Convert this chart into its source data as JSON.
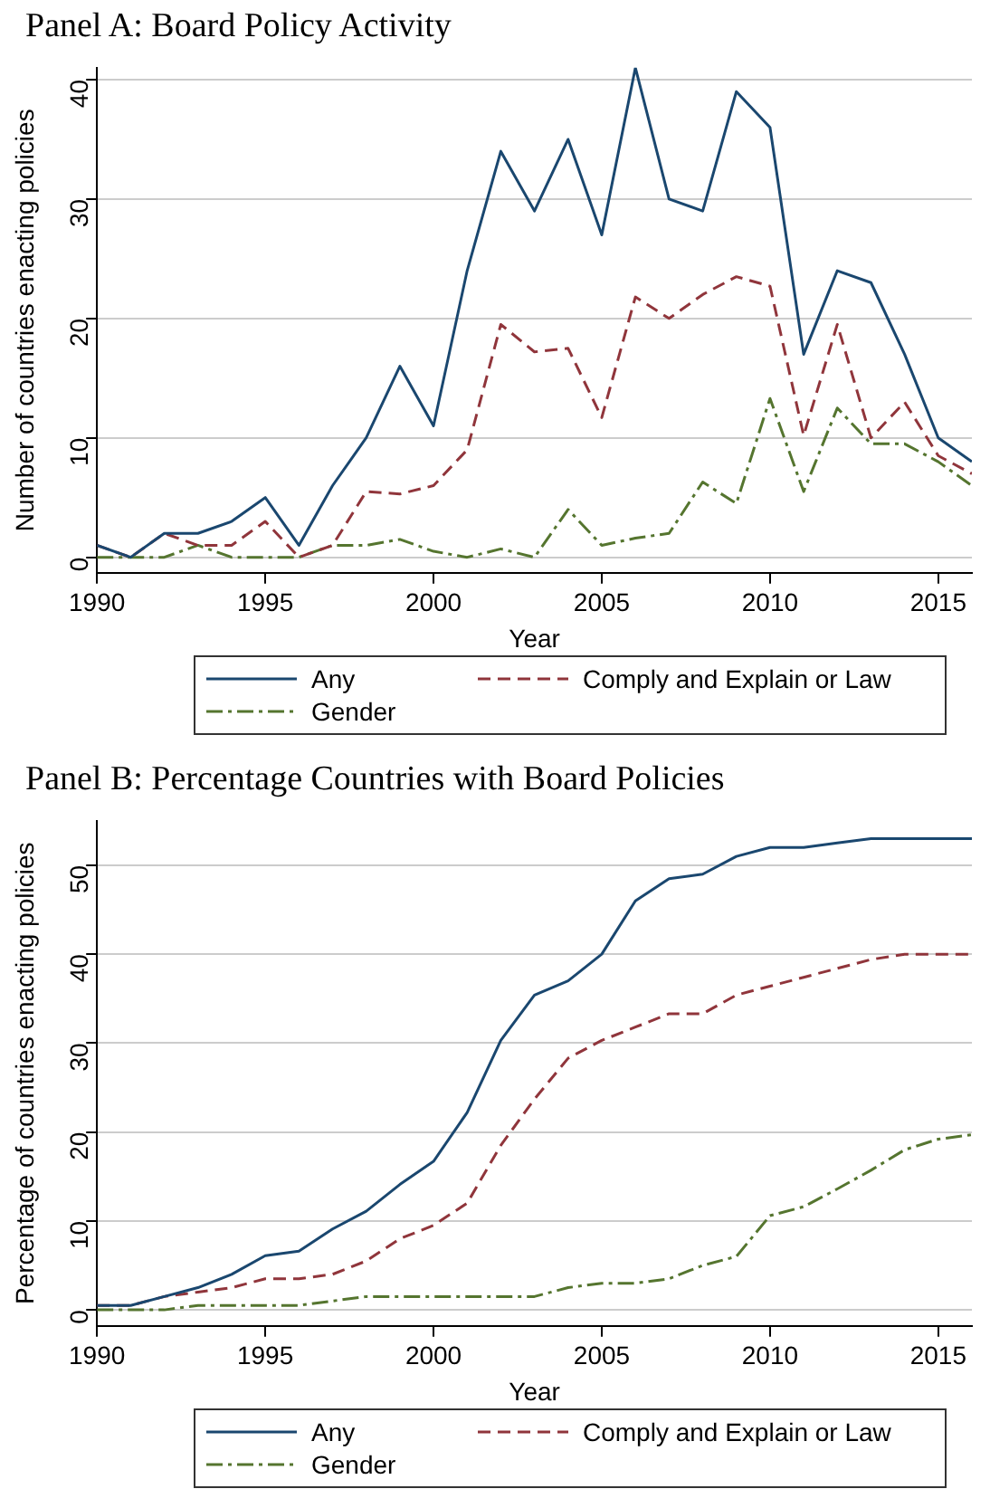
{
  "chart_data": [
    {
      "type": "line",
      "title": "Panel A: Board Policy Activity",
      "xlabel": "Year",
      "ylabel": "Number of countries enacting policies",
      "x": [
        1990,
        1991,
        1992,
        1993,
        1994,
        1995,
        1996,
        1997,
        1998,
        1999,
        2000,
        2001,
        2002,
        2003,
        2004,
        2005,
        2006,
        2007,
        2008,
        2009,
        2010,
        2011,
        2012,
        2013,
        2014,
        2015,
        2016
      ],
      "series": [
        {
          "name": "Any",
          "color": "#1a476f",
          "line_style": "solid",
          "values": [
            1,
            0,
            2,
            2,
            3,
            5,
            1,
            6,
            10,
            16,
            11,
            24,
            34,
            29,
            35,
            27,
            41,
            30,
            29,
            39,
            36,
            17,
            24,
            23,
            17,
            10,
            8
          ]
        },
        {
          "name": "Comply and Explain or Law",
          "color": "#90353b",
          "line_style": "dashed",
          "values": [
            1,
            0,
            2,
            1,
            1,
            3,
            0,
            1,
            5.5,
            5.3,
            6,
            9,
            19.5,
            17.2,
            17.5,
            11.7,
            21.8,
            20,
            22,
            23.5,
            22.7,
            10.2,
            19.5,
            10,
            13,
            8.5,
            7
          ]
        },
        {
          "name": "Gender",
          "color": "#55752f",
          "line_style": "dashdot",
          "values": [
            0,
            0,
            0,
            1,
            0,
            0,
            0,
            1,
            1,
            1.5,
            0.5,
            0,
            0.7,
            0,
            4,
            1,
            1.6,
            2,
            6.3,
            4.5,
            13.3,
            5.5,
            12.5,
            9.5,
            9.5,
            8,
            6
          ]
        }
      ],
      "xlim": [
        1990,
        2016
      ],
      "xticks": [
        1990,
        1995,
        2000,
        2005,
        2010,
        2015
      ],
      "ylim": [
        -1.3,
        41
      ],
      "yticks": [
        0,
        10,
        20,
        30,
        40
      ],
      "grid": "y",
      "legend": "bottom",
      "marker": "none"
    },
    {
      "type": "line",
      "title": "Panel B: Percentage Countries with Board Policies",
      "xlabel": "Year",
      "ylabel": "Percentage of countries enacting policies",
      "x": [
        1990,
        1991,
        1992,
        1993,
        1994,
        1995,
        1996,
        1997,
        1998,
        1999,
        2000,
        2001,
        2002,
        2003,
        2004,
        2005,
        2006,
        2007,
        2008,
        2009,
        2010,
        2011,
        2012,
        2013,
        2014,
        2015,
        2016
      ],
      "series": [
        {
          "name": "Any",
          "color": "#1a476f",
          "line_style": "solid",
          "values": [
            0.5,
            0.5,
            1.5,
            2.5,
            4,
            6.1,
            6.6,
            9.1,
            11.1,
            14.1,
            16.7,
            22.2,
            30.3,
            35.4,
            37,
            40,
            46,
            48.5,
            49,
            51,
            52,
            52,
            52.5,
            53,
            53,
            53,
            53
          ]
        },
        {
          "name": "Comply and Explain or Law",
          "color": "#90353b",
          "line_style": "dashed",
          "values": [
            0.5,
            0.5,
            1.5,
            2,
            2.5,
            3.5,
            3.5,
            4,
            5.5,
            8,
            9.5,
            12,
            18.5,
            23.7,
            28.3,
            30.3,
            31.8,
            33.3,
            33.3,
            35.4,
            36.4,
            37.4,
            38.4,
            39.4,
            40,
            40,
            40
          ]
        },
        {
          "name": "Gender",
          "color": "#55752f",
          "line_style": "dashdot",
          "values": [
            0,
            0,
            0,
            0.5,
            0.5,
            0.5,
            0.5,
            1,
            1.5,
            1.5,
            1.5,
            1.5,
            1.5,
            1.5,
            2.5,
            3,
            3,
            3.5,
            5,
            6,
            10.6,
            11.6,
            13.6,
            15.7,
            18,
            19.2,
            19.7
          ]
        }
      ],
      "xlim": [
        1990,
        2016
      ],
      "xticks": [
        1990,
        1995,
        2000,
        2005,
        2010,
        2015
      ],
      "ylim": [
        -1.8,
        55
      ],
      "yticks": [
        0,
        10,
        20,
        30,
        40,
        50
      ],
      "grid": "y",
      "legend": "bottom",
      "marker": "none"
    }
  ]
}
